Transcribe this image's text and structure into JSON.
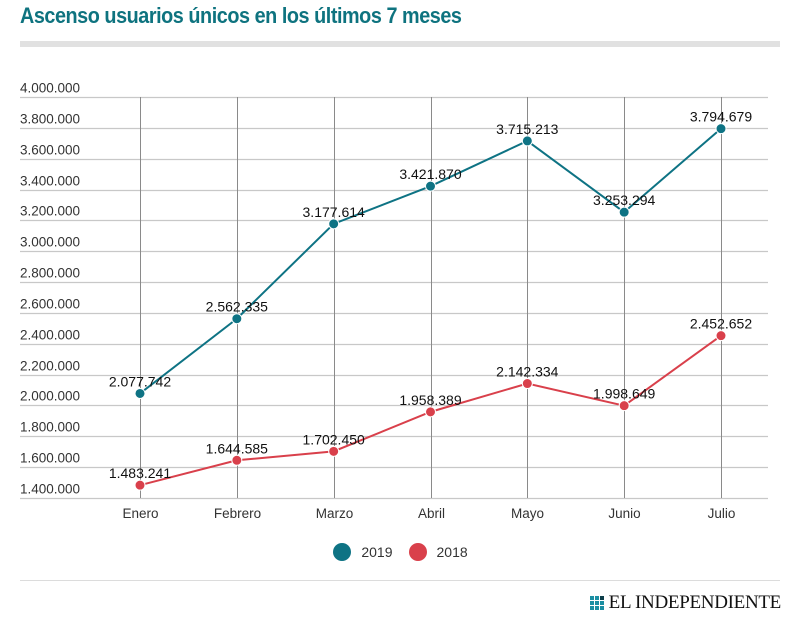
{
  "header": {
    "title": "Ascenso usuarios únicos en los últimos 7 meses"
  },
  "colors": {
    "title": "#0e737f",
    "series_2019": "#0e7384",
    "series_2018": "#d9404b",
    "grid": "#c8c8c8",
    "vgrid": "#8a8a8a"
  },
  "chart_data": {
    "type": "line",
    "title": "Ascenso usuarios únicos en los últimos 7 meses",
    "xlabel": "",
    "ylabel": "",
    "categories": [
      "Enero",
      "Febrero",
      "Marzo",
      "Abril",
      "Mayo",
      "Junio",
      "Julio"
    ],
    "series": [
      {
        "name": "2019",
        "color": "#0e7384",
        "values": [
          2077742,
          2562335,
          3177614,
          3421870,
          3715213,
          3253294,
          3794679
        ],
        "labels": [
          "2.077.742",
          "2.562.335",
          "3.177.614",
          "3.421.870",
          "3.715.213",
          "3.253.294",
          "3.794.679"
        ]
      },
      {
        "name": "2018",
        "color": "#d9404b",
        "values": [
          1483241,
          1644585,
          1702450,
          1958389,
          2142334,
          1998649,
          2452652
        ],
        "labels": [
          "1.483.241",
          "1.644.585",
          "1.702.450",
          "1.958.389",
          "2.142.334",
          "1.998.649",
          "2.452.652"
        ]
      }
    ],
    "ylim": [
      1400000,
      4000000
    ],
    "yticks": [
      4000000,
      3800000,
      3600000,
      3400000,
      3200000,
      3000000,
      2800000,
      2600000,
      2400000,
      2200000,
      2000000,
      1800000,
      1600000,
      1400000
    ],
    "ytick_labels": [
      "4.000.000",
      "3.800.000",
      "3.600.000",
      "3.400.000",
      "3.200.000",
      "3.000.000",
      "2.800.000",
      "2.600.000",
      "2.400.000",
      "2.200.000",
      "2.000.000",
      "1.800.000",
      "1.600.000",
      "1.400.000"
    ],
    "grid": true,
    "legend": "bottom-center"
  },
  "legend": {
    "items": [
      {
        "label": "2019",
        "color": "#0e7384"
      },
      {
        "label": "2018",
        "color": "#d9404b"
      }
    ]
  },
  "footer": {
    "brand": "EL INDEPENDIENTE"
  }
}
